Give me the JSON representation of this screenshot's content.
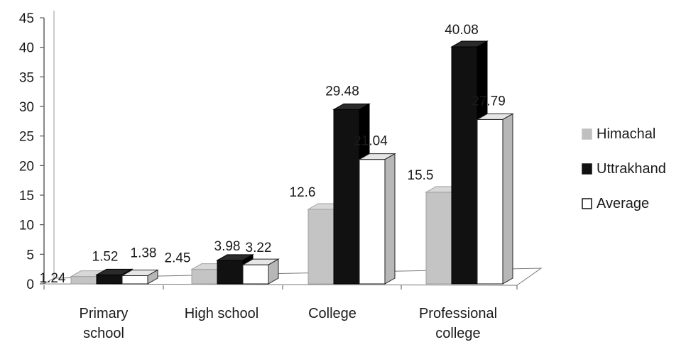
{
  "chart_data": {
    "type": "bar",
    "categories": [
      "Primary school",
      "High school",
      "College",
      "Professional college"
    ],
    "series": [
      {
        "name": "Himachal",
        "values": [
          1.24,
          2.45,
          12.6,
          15.5
        ],
        "color": "#c0c0c0"
      },
      {
        "name": "Uttrakhand",
        "values": [
          1.52,
          3.98,
          29.48,
          40.08
        ],
        "color": "#111111"
      },
      {
        "name": "Average",
        "values": [
          1.38,
          3.22,
          21.04,
          27.79
        ],
        "color": "#ffffff"
      }
    ],
    "data_labels": [
      [
        "1.24",
        "2.45",
        "12.6",
        "15.5"
      ],
      [
        "1.52",
        "3.98",
        "29.48",
        "40.08"
      ],
      [
        "1.38",
        "3.22",
        "21.04",
        "27.79"
      ]
    ],
    "y_ticks": [
      0,
      5,
      10,
      15,
      20,
      25,
      30,
      35,
      40,
      45
    ],
    "ylim": [
      0,
      45
    ],
    "style": "3d-clustered-column",
    "grid": false,
    "legend_position": "right"
  }
}
